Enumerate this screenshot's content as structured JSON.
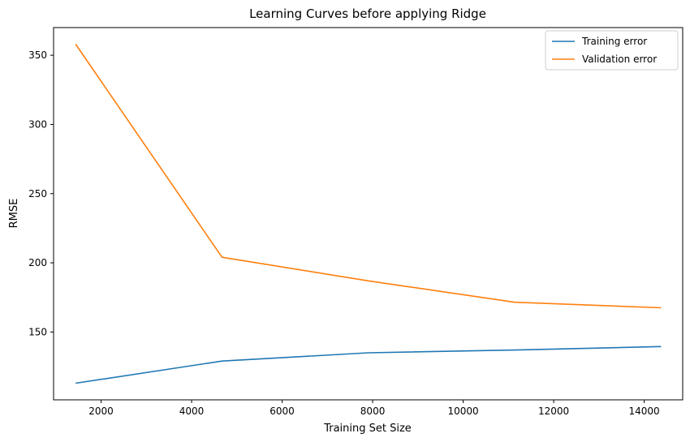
{
  "chart_data": {
    "type": "line",
    "title": "Learning Curves before applying Ridge",
    "xlabel": "Training Set Size",
    "ylabel": "RMSE",
    "xlim": [
      950,
      14850
    ],
    "ylim": [
      101,
      370
    ],
    "xticks": [
      2000,
      4000,
      6000,
      8000,
      10000,
      12000,
      14000
    ],
    "yticks": [
      150,
      200,
      250,
      300,
      350
    ],
    "grid": false,
    "legend_position": "top-right",
    "series": [
      {
        "name": "Training error",
        "color": "#1f77b4",
        "x": [
          1437,
          4671,
          7905,
          11139,
          14373
        ],
        "y": [
          113,
          129,
          135,
          137,
          139.5
        ]
      },
      {
        "name": "Validation error",
        "color": "#ff7f0e",
        "x": [
          1437,
          4671,
          7905,
          11139,
          14373
        ],
        "y": [
          358,
          204,
          187,
          171.5,
          167.5
        ]
      }
    ]
  }
}
